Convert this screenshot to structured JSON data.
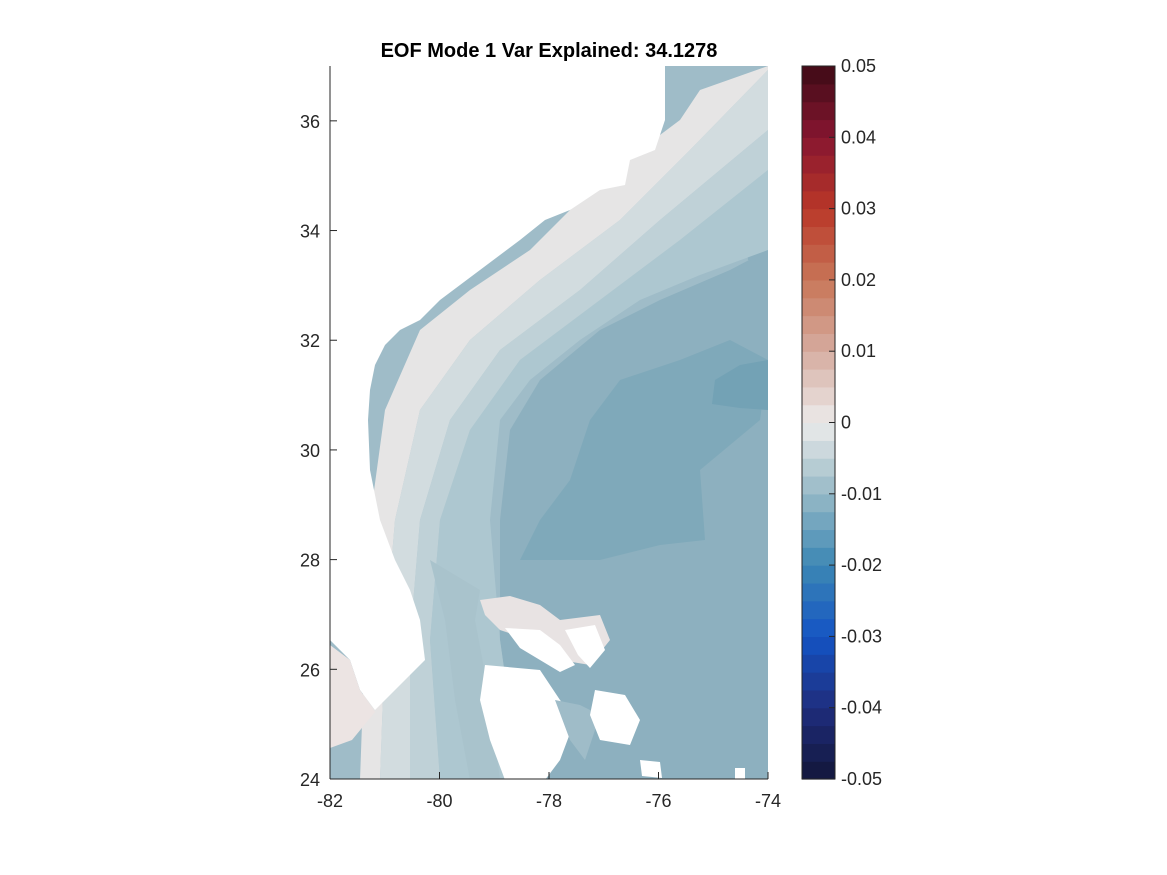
{
  "chart_data": {
    "type": "heatmap",
    "title": "EOF Mode 1 Var Explained: 34.1278",
    "xlim": [
      -82,
      -74
    ],
    "ylim": [
      24,
      37
    ],
    "x_ticks": [
      "-82",
      "-80",
      "-78",
      "-76",
      "-74"
    ],
    "y_ticks": [
      "24",
      "26",
      "28",
      "30",
      "32",
      "34",
      "36"
    ],
    "x_tick_values": [
      -82,
      -80,
      -78,
      -76,
      -74
    ],
    "y_tick_values": [
      24,
      26,
      28,
      30,
      32,
      34,
      36
    ],
    "colorbar": {
      "range": [
        -0.05,
        0.05
      ],
      "tick_labels": [
        "0.05",
        "0.04",
        "0.03",
        "0.02",
        "0.01",
        "0",
        "-0.01",
        "-0.02",
        "-0.03",
        "-0.04",
        "-0.05"
      ],
      "tick_values": [
        0.05,
        0.04,
        0.03,
        0.02,
        0.01,
        0,
        -0.01,
        -0.02,
        -0.03,
        -0.04,
        -0.05
      ],
      "colormap": "diverging blue-white-red",
      "levels": 40
    },
    "field_description_values": {
      "land": "white (no data)",
      "coastal_shelf_value": -0.003,
      "slope_value": -0.008,
      "offshore_value": -0.015,
      "min_value_near": [
        -74.5,
        30.9
      ],
      "min_value": -0.017
    },
    "grid": false,
    "colorbar_placement": "right"
  }
}
